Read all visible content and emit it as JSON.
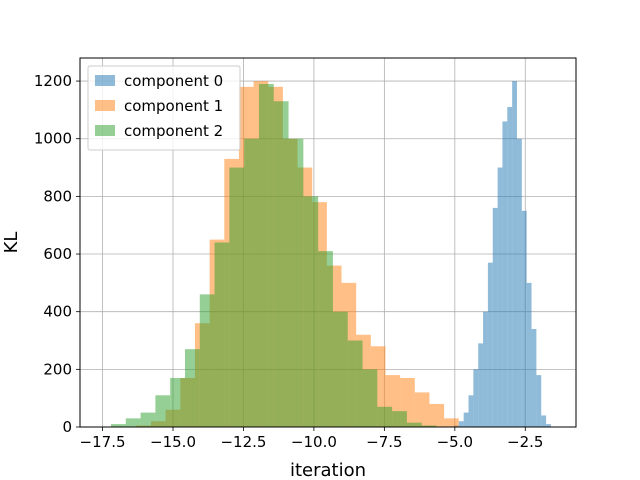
{
  "chart_data": {
    "type": "histogram",
    "xlabel": "iteration",
    "ylabel": "KL",
    "xlim": [
      -18.3,
      -0.7
    ],
    "ylim": [
      0,
      1280
    ],
    "xticks": [
      -17.5,
      -15.0,
      -12.5,
      -10.0,
      -7.5,
      -5.0,
      -2.5
    ],
    "xtick_labels": [
      "−17.5",
      "−15.0",
      "−12.5",
      "−10.0",
      "−7.5",
      "−5.0",
      "−2.5"
    ],
    "yticks": [
      0,
      200,
      400,
      600,
      800,
      1000,
      1200
    ],
    "ytick_labels": [
      "0",
      "200",
      "400",
      "600",
      "800",
      "1000",
      "1200"
    ],
    "grid": true,
    "legend_position": "top-left",
    "series": [
      {
        "name": "component 0",
        "color": "#1f77b4",
        "alpha": 0.5,
        "bin_start": -5.03,
        "bin_width": 0.172,
        "counts": [
          5,
          20,
          50,
          110,
          200,
          290,
          400,
          570,
          760,
          900,
          1060,
          1110,
          1200,
          1000,
          750,
          500,
          340,
          180,
          40,
          10
        ]
      },
      {
        "name": "component 1",
        "color": "#ff7f0e",
        "alpha": 0.5,
        "bin_start": -16.3,
        "bin_width": 0.52,
        "counts": [
          5,
          20,
          60,
          170,
          360,
          650,
          930,
          1180,
          1200,
          1180,
          1000,
          900,
          780,
          560,
          500,
          320,
          280,
          180,
          170,
          120,
          80,
          30
        ]
      },
      {
        "name": "component 2",
        "color": "#2ca02c",
        "alpha": 0.5,
        "bin_start": -17.2,
        "bin_width": 0.525,
        "counts": [
          10,
          30,
          50,
          110,
          170,
          270,
          460,
          640,
          900,
          1000,
          1190,
          1130,
          1000,
          800,
          610,
          400,
          300,
          200,
          70,
          55,
          15,
          5
        ]
      }
    ]
  }
}
